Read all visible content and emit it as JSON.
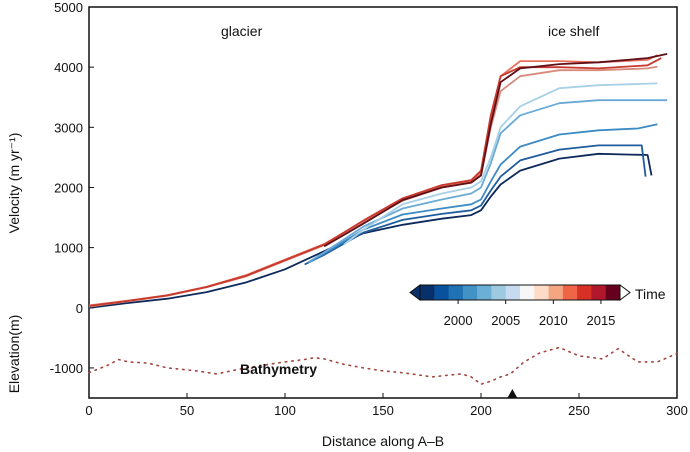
{
  "chart_data": {
    "type": "line",
    "xlabel": "Distance along A–B",
    "ylabel": "Velocity (m yr⁻¹)",
    "ylabel_lower": "Elevation(m)",
    "xlim": [
      0,
      300
    ],
    "ylim": [
      -1500,
      5000
    ],
    "xticks": [
      0,
      50,
      100,
      150,
      200,
      250,
      300
    ],
    "yticks": [
      -1000,
      0,
      1000,
      2000,
      3000,
      4000,
      5000
    ],
    "annotations": [
      "glacier",
      "ice shelf"
    ],
    "bathymetry_label": "Bathymetry",
    "colorbar": {
      "label": "Time",
      "ticks": [
        2000,
        2005,
        2010,
        2015
      ],
      "range": [
        1996,
        2017
      ],
      "colors": [
        "#08306b",
        "#08519c",
        "#2171b5",
        "#4292c6",
        "#6baed6",
        "#9ecae1",
        "#c6dbef",
        "#f7f7f7",
        "#fddbc7",
        "#f4a582",
        "#ef6548",
        "#d73027",
        "#b2182b",
        "#67001f"
      ]
    },
    "series": [
      {
        "year": 1996,
        "color": "#0d2a5c",
        "x": [
          0,
          20,
          40,
          60,
          80,
          100,
          120,
          140,
          160,
          180,
          195,
          200,
          205,
          210,
          220,
          240,
          260,
          285,
          287
        ],
        "y": [
          0,
          80,
          150,
          260,
          420,
          640,
          940,
          1240,
          1380,
          1480,
          1540,
          1620,
          1850,
          2050,
          2280,
          2480,
          2560,
          2540,
          2200
        ]
      },
      {
        "year": 1999,
        "color": "#1f5c9e",
        "x": [
          110,
          120,
          140,
          160,
          180,
          195,
          200,
          205,
          210,
          220,
          240,
          260,
          282,
          284
        ],
        "y": [
          720,
          880,
          1250,
          1460,
          1560,
          1620,
          1700,
          1950,
          2180,
          2450,
          2630,
          2700,
          2700,
          2180
        ]
      },
      {
        "year": 2002,
        "color": "#3d8bc4",
        "x": [
          112,
          120,
          140,
          160,
          180,
          195,
          200,
          205,
          210,
          220,
          240,
          260,
          280,
          290
        ],
        "y": [
          760,
          900,
          1300,
          1550,
          1650,
          1720,
          1800,
          2100,
          2380,
          2680,
          2880,
          2950,
          2980,
          3050
        ]
      },
      {
        "year": 2004,
        "color": "#6aaad6",
        "x": [
          112,
          120,
          140,
          160,
          180,
          195,
          200,
          205,
          210,
          220,
          240,
          260,
          280,
          295
        ],
        "y": [
          760,
          920,
          1350,
          1650,
          1800,
          1900,
          2000,
          2400,
          2900,
          3200,
          3400,
          3450,
          3450,
          3450
        ]
      },
      {
        "year": 2006,
        "color": "#a8d0e6",
        "x": [
          130,
          140,
          160,
          180,
          195,
          200,
          205,
          210,
          220,
          240,
          260,
          280,
          290
        ],
        "y": [
          1050,
          1300,
          1720,
          1900,
          2000,
          2100,
          2500,
          3000,
          3350,
          3650,
          3700,
          3720,
          3730
        ]
      },
      {
        "year": 2009,
        "color": "#d98a7a",
        "x": [
          0,
          20,
          40,
          60,
          80,
          100,
          120,
          140,
          160,
          180,
          195,
          200,
          205,
          210,
          220,
          240,
          260,
          285,
          290
        ],
        "y": [
          20,
          110,
          200,
          340,
          520,
          780,
          1040,
          1420,
          1780,
          2000,
          2080,
          2200,
          3000,
          3600,
          3850,
          3950,
          3950,
          3980,
          4010
        ]
      },
      {
        "year": 2012,
        "color": "#e8715c",
        "x": [
          0,
          20,
          40,
          60,
          80,
          100,
          120,
          140,
          160,
          180,
          195,
          200,
          205,
          210,
          220,
          240,
          260,
          285,
          290
        ],
        "y": [
          40,
          120,
          210,
          350,
          540,
          800,
          1060,
          1440,
          1800,
          2020,
          2100,
          2250,
          3150,
          3850,
          4100,
          4100,
          4080,
          4120,
          4200
        ]
      },
      {
        "year": 2014,
        "color": "#c83a2e",
        "x": [
          0,
          20,
          40,
          60,
          80,
          100,
          120,
          140,
          160,
          180,
          195,
          200,
          205,
          210,
          220,
          240,
          260,
          285,
          292
        ],
        "y": [
          30,
          115,
          205,
          345,
          530,
          790,
          1050,
          1450,
          1820,
          2040,
          2120,
          2280,
          3200,
          3850,
          4000,
          4000,
          3980,
          4030,
          4150
        ]
      },
      {
        "year": 2016,
        "color": "#5e0f17",
        "x": [
          120,
          140,
          160,
          180,
          195,
          200,
          205,
          210,
          220,
          240,
          260,
          285,
          295
        ],
        "y": [
          1020,
          1400,
          1790,
          2000,
          2080,
          2200,
          3050,
          3750,
          3980,
          4050,
          4080,
          4150,
          4220
        ]
      }
    ],
    "bathymetry": {
      "x": [
        0,
        10,
        15,
        20,
        30,
        40,
        55,
        65,
        80,
        90,
        100,
        110,
        115,
        120,
        130,
        140,
        150,
        160,
        175,
        190,
        195,
        200,
        205,
        210,
        215,
        222,
        230,
        240,
        250,
        262,
        270,
        280,
        290,
        300
      ],
      "y": [
        -1080,
        -950,
        -860,
        -900,
        -920,
        -1000,
        -1050,
        -1100,
        -1000,
        -950,
        -900,
        -860,
        -830,
        -850,
        -940,
        -1000,
        -1050,
        -1080,
        -1150,
        -1100,
        -1150,
        -1270,
        -1220,
        -1150,
        -1100,
        -900,
        -750,
        -660,
        -800,
        -850,
        -680,
        -900,
        -900,
        -760
      ]
    },
    "marker_x": 216
  }
}
